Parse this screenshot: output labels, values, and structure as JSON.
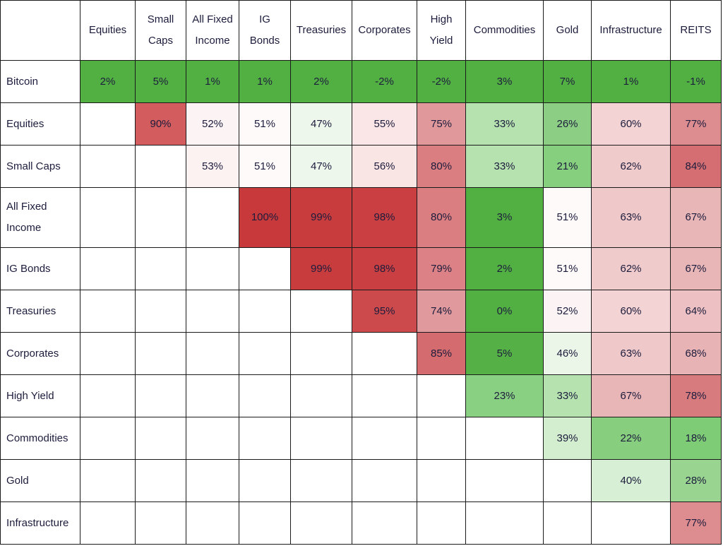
{
  "chart_data": {
    "type": "heatmap",
    "value_suffix": "%",
    "columns": [
      "Equities",
      "Small Caps",
      "All Fixed Income",
      "IG Bonds",
      "Treasuries",
      "Corporates",
      "High Yield",
      "Commodities",
      "Gold",
      "Infrastructure",
      "REITS"
    ],
    "rows": [
      {
        "label": "Bitcoin",
        "values": [
          2,
          5,
          1,
          1,
          2,
          -2,
          -2,
          3,
          7,
          1,
          -1
        ],
        "colors": [
          "#52b043",
          "#52b043",
          "#52b043",
          "#52b043",
          "#52b043",
          "#52b043",
          "#52b043",
          "#52b043",
          "#52b043",
          "#52b043",
          "#52b043"
        ]
      },
      {
        "label": "Equities",
        "values": [
          null,
          90,
          52,
          51,
          47,
          55,
          75,
          33,
          26,
          60,
          77
        ],
        "colors": [
          null,
          "#d25c5e",
          "#fcf4f4",
          "#fefafa",
          "#eef7ec",
          "#fae6e6",
          "#e0989b",
          "#b6e2b0",
          "#8ccf84",
          "#f3d3d4",
          "#dd8c90"
        ]
      },
      {
        "label": "Small Caps",
        "values": [
          null,
          null,
          53,
          51,
          47,
          56,
          80,
          33,
          21,
          62,
          84
        ],
        "colors": [
          null,
          null,
          "#fcf2f2",
          "#fefafa",
          "#eef7ec",
          "#fae5e5",
          "#db7e82",
          "#b6e2b0",
          "#86cf7e",
          "#f0cbcc",
          "#d56e72"
        ]
      },
      {
        "label": "All Fixed Income",
        "values": [
          null,
          null,
          null,
          100,
          99,
          98,
          80,
          3,
          51,
          63,
          67
        ],
        "colors": [
          null,
          null,
          null,
          "#c8393b",
          "#c93c3e",
          "#ca3f41",
          "#db7e82",
          "#52b043",
          "#fefafa",
          "#efc8ca",
          "#e9b6b8"
        ]
      },
      {
        "label": "IG Bonds",
        "values": [
          null,
          null,
          null,
          null,
          99,
          98,
          79,
          2,
          51,
          62,
          67
        ],
        "colors": [
          null,
          null,
          null,
          null,
          "#c93c3e",
          "#ca3f41",
          "#dc8286",
          "#52b043",
          "#fefafa",
          "#f0cbcc",
          "#e9b6b8"
        ]
      },
      {
        "label": "Treasuries",
        "values": [
          null,
          null,
          null,
          null,
          null,
          95,
          74,
          0,
          52,
          60,
          64
        ],
        "colors": [
          null,
          null,
          null,
          null,
          null,
          "#cd4a4c",
          "#e09a9d",
          "#52b043",
          "#fcf4f4",
          "#f3d3d4",
          "#edc1c3"
        ]
      },
      {
        "label": "Corporates",
        "values": [
          null,
          null,
          null,
          null,
          null,
          null,
          85,
          5,
          46,
          63,
          68
        ],
        "colors": [
          null,
          null,
          null,
          null,
          null,
          null,
          "#d46b6f",
          "#55b146",
          "#ebf6e9",
          "#efc8ca",
          "#e8b3b5"
        ]
      },
      {
        "label": "High Yield",
        "values": [
          null,
          null,
          null,
          null,
          null,
          null,
          null,
          23,
          33,
          67,
          78
        ],
        "colors": [
          null,
          null,
          null,
          null,
          null,
          null,
          null,
          "#8ad083",
          "#b6e2b0",
          "#e9b6b8",
          "#d87b7f"
        ]
      },
      {
        "label": "Commodities",
        "values": [
          null,
          null,
          null,
          null,
          null,
          null,
          null,
          null,
          39,
          22,
          18
        ],
        "colors": [
          null,
          null,
          null,
          null,
          null,
          null,
          null,
          null,
          "#d3edcf",
          "#87cf7f",
          "#7fcc77"
        ]
      },
      {
        "label": "Gold",
        "values": [
          null,
          null,
          null,
          null,
          null,
          null,
          null,
          null,
          null,
          40,
          28
        ],
        "colors": [
          null,
          null,
          null,
          null,
          null,
          null,
          null,
          null,
          null,
          "#d7efd4",
          "#99d591"
        ]
      },
      {
        "label": "Infrastructure",
        "values": [
          null,
          null,
          null,
          null,
          null,
          null,
          null,
          null,
          null,
          null,
          77
        ],
        "colors": [
          null,
          null,
          null,
          null,
          null,
          null,
          null,
          null,
          null,
          null,
          "#dd8c90"
        ]
      }
    ]
  }
}
